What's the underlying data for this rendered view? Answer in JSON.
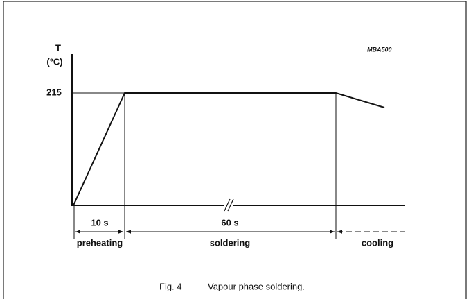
{
  "figure": {
    "axis_label": "T",
    "axis_unit": "(°C)",
    "code": "MBA500",
    "temperature_label": "215",
    "intervals": [
      {
        "duration": "10 s",
        "phase": "preheating"
      },
      {
        "duration": "60 s",
        "phase": "soldering"
      },
      {
        "phase": "cooling"
      }
    ],
    "caption": {
      "number": "Fig. 4",
      "text": "Vapour phase soldering."
    }
  }
}
